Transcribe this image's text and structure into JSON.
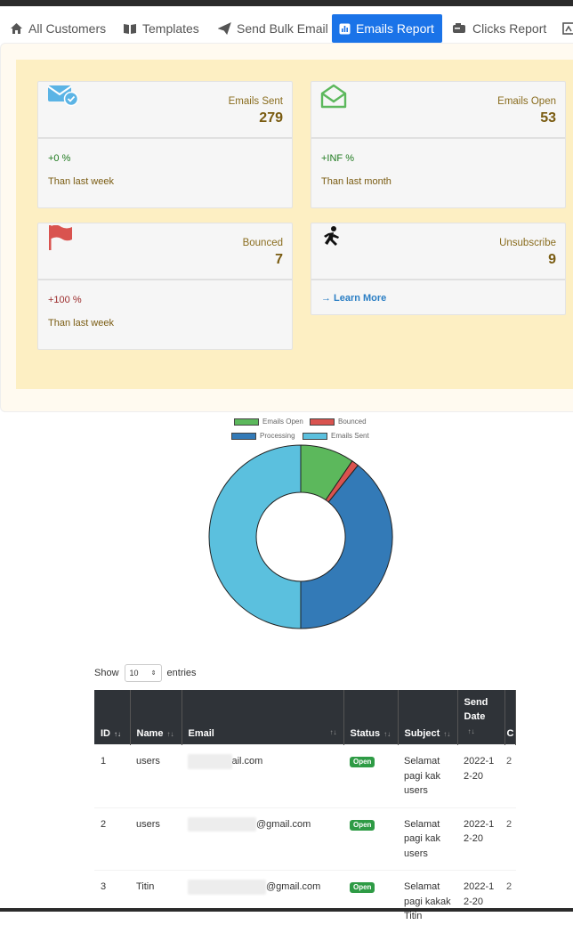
{
  "tabs": [
    {
      "label": "All Customers",
      "icon": "home-icon",
      "active": false
    },
    {
      "label": "Templates",
      "icon": "book-icon",
      "active": false
    },
    {
      "label": "Send Bulk Email",
      "icon": "paper-plane-icon",
      "active": false
    },
    {
      "label": "Emails Report",
      "icon": "chart-icon",
      "active": true
    },
    {
      "label": "Clicks Report",
      "icon": "mailbox-icon",
      "active": false
    }
  ],
  "cards": {
    "sent": {
      "label": "Emails Sent",
      "value": "279",
      "pct": "+0 %",
      "sub": "Than last week"
    },
    "open": {
      "label": "Emails Open",
      "value": "53",
      "pct": "+INF %",
      "sub": "Than last month"
    },
    "bounced": {
      "label": "Bounced",
      "value": "7",
      "pct": "+100 %",
      "sub": "Than last week"
    },
    "unsub": {
      "label": "Unsubscribe",
      "value": "9",
      "link": "Learn More"
    }
  },
  "chart_data": {
    "type": "pie",
    "variant": "doughnut",
    "labels": [
      "Emails Open",
      "Bounced",
      "Processing",
      "Emails Sent"
    ],
    "values": [
      53,
      7,
      219,
      279
    ],
    "colors": [
      "#5cb85c",
      "#d9534f",
      "#337ab7",
      "#5bc0de"
    ]
  },
  "table": {
    "show_label": "Show",
    "page_size": "10",
    "entries_label": "entries",
    "columns": [
      "ID",
      "Name",
      "Email",
      "Status",
      "Subject",
      "Send Date",
      "C"
    ],
    "rows": [
      {
        "id": "1",
        "name": "users",
        "email_visible": "ail.com",
        "status": "Open",
        "subject": "Selamat pagi kak users",
        "date": "2022-12-20"
      },
      {
        "id": "2",
        "name": "users",
        "email_visible": "@gmail.com",
        "status": "Open",
        "subject": "Selamat pagi kak users",
        "date": "2022-12-20"
      },
      {
        "id": "3",
        "name": "Titin",
        "email_visible": "@gmail.com",
        "status": "Open",
        "subject": "Selamat pagi kakak Titin",
        "date": "2022-12-20"
      }
    ]
  }
}
